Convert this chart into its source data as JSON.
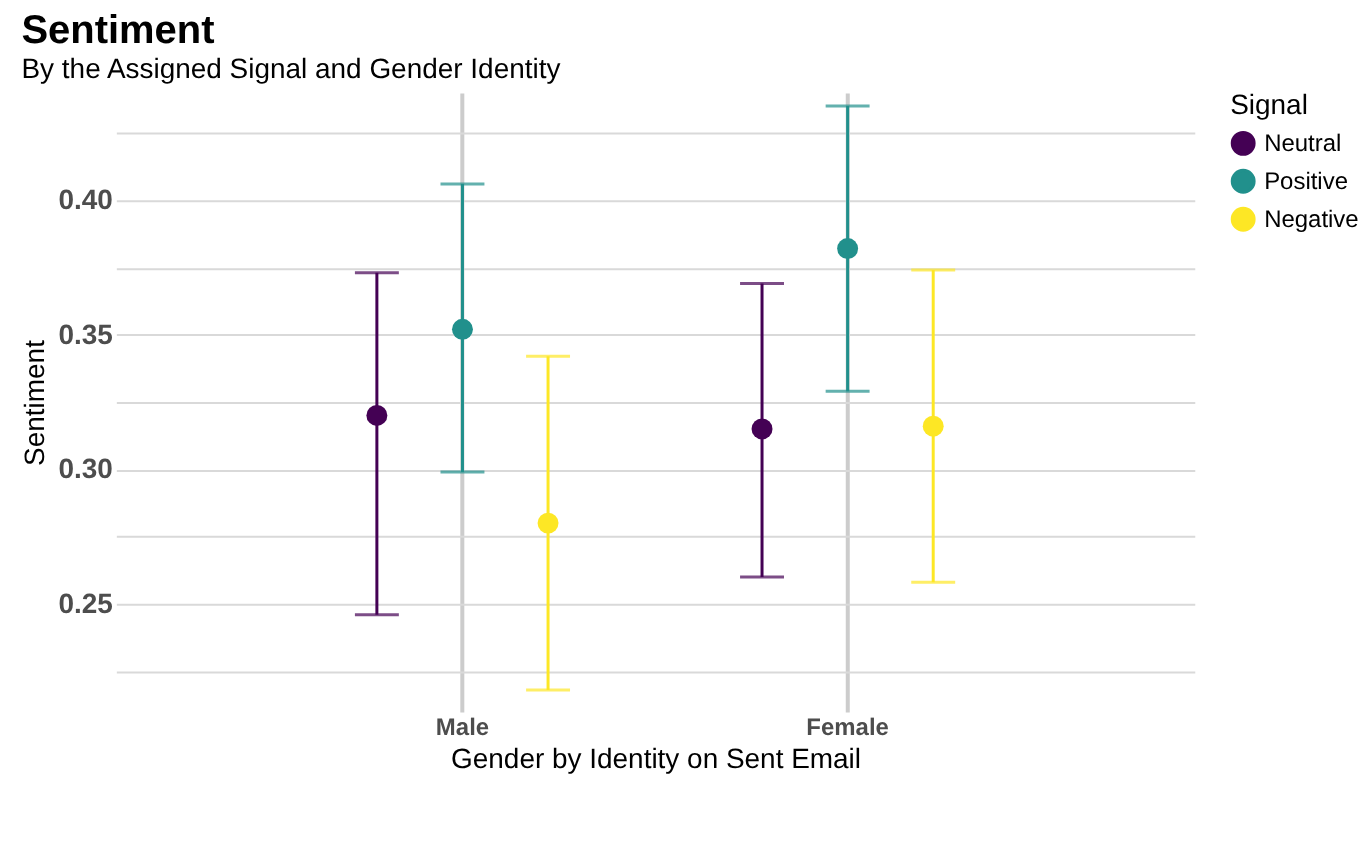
{
  "chart_data": {
    "type": "scatter",
    "title": "Sentiment",
    "subtitle": "By the Assigned Signal and Gender Identity",
    "xlabel": "Gender by Identity on Sent Email",
    "ylabel": "Sentiment",
    "legend_title": "Signal",
    "categories": [
      "Male",
      "Female"
    ],
    "series": [
      {
        "name": "Neutral",
        "color": "#440154",
        "values": [
          0.32,
          0.315
        ],
        "errors": [
          [
            0.246,
            0.373
          ],
          [
            0.26,
            0.369
          ]
        ]
      },
      {
        "name": "Positive",
        "color": "#21908c",
        "values": [
          0.352,
          0.382
        ],
        "errors": [
          [
            0.299,
            0.406
          ],
          [
            0.329,
            0.435
          ]
        ]
      },
      {
        "name": "Negative",
        "color": "#fde725",
        "values": [
          0.28,
          0.316
        ],
        "errors": [
          [
            0.218,
            0.342
          ],
          [
            0.258,
            0.374
          ]
        ]
      }
    ],
    "ylim": [
      0.21,
      0.44
    ],
    "yticks": [
      {
        "value": 0.225,
        "label": null
      },
      0.25,
      {
        "value": 0.275,
        "label": null
      },
      {
        "value": 0.3,
        "label": "0.30"
      },
      {
        "value": 0.325,
        "label": null
      },
      0.35,
      {
        "value": 0.375,
        "label": null
      },
      {
        "value": 0.4,
        "label": "0.40"
      },
      {
        "value": 0.425,
        "label": null
      }
    ],
    "grid": true,
    "legend": "right",
    "marker": "circle"
  }
}
